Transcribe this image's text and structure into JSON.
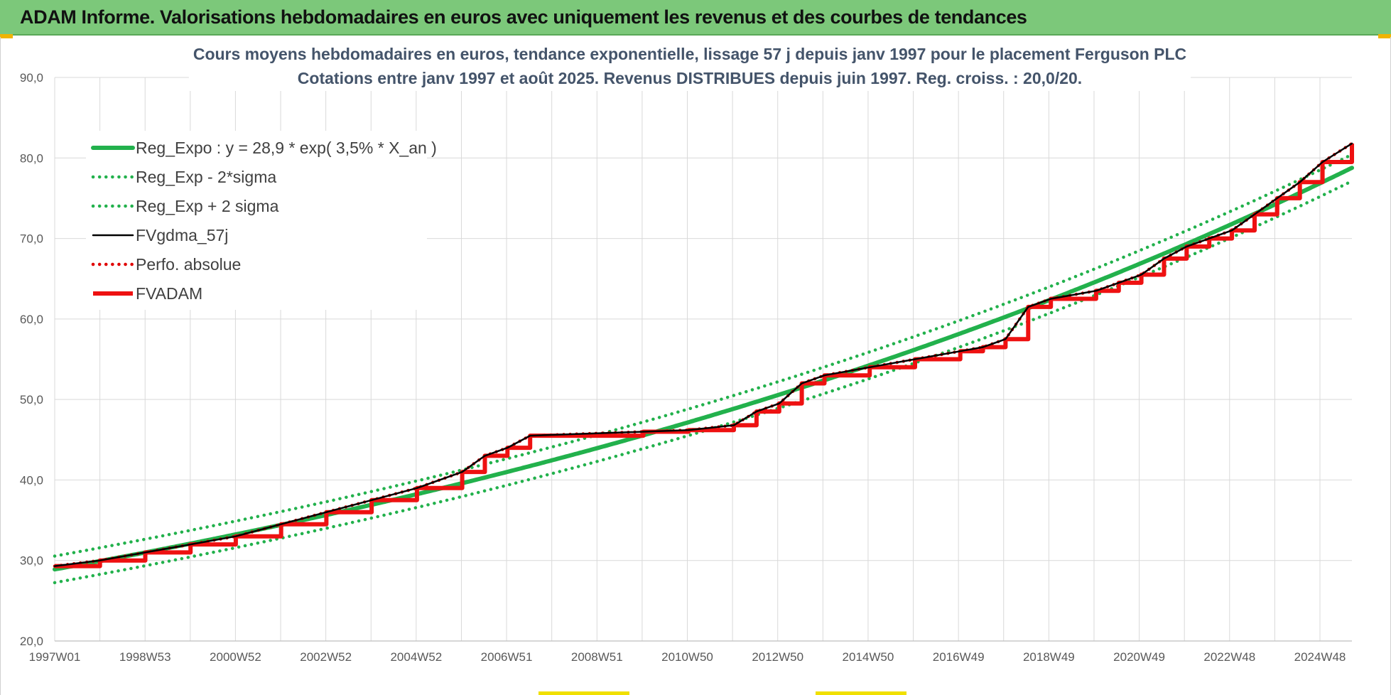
{
  "banner": {
    "title": "ADAM Informe. Valorisations hebdomadaires en euros avec uniquement les revenus et des courbes de tendances"
  },
  "colors": {
    "banner_bg": "#7cc87a",
    "reg_expo": "#22b14c",
    "perf_absolue": "#e00000",
    "fvadam": "#ee1111",
    "fvgdma": "#000000",
    "grid": "#d9d9d9"
  },
  "chart_data": {
    "type": "line",
    "title": [
      "Cours moyens hebdomadaires en euros, tendance exponentielle, lissage 57 j depuis janv 1997 pour le placement Ferguson PLC",
      "Cotations entre janv 1997 et août 2025.  Revenus DISTRIBUES depuis juin 1997.  Reg. croiss. : 20,0/20."
    ],
    "xlabel": "",
    "ylabel": "",
    "ylim": [
      20,
      90
    ],
    "grid": true,
    "legend_placement": "top-left",
    "x_tick_labels": [
      "1997W01",
      "1998W53",
      "2000W52",
      "2002W52",
      "2004W52",
      "2006W51",
      "2008W51",
      "2010W50",
      "2012W50",
      "2014W50",
      "2016W49",
      "2018W49",
      "2020W49",
      "2022W48",
      "2024W48"
    ],
    "y_tick_labels": [
      "20,0",
      "30,0",
      "40,0",
      "50,0",
      "60,0",
      "70,0",
      "80,0",
      "90,0"
    ],
    "x_range_years": [
      1997.0,
      2025.65
    ],
    "series": [
      {
        "name": "Reg_Expo : y = 28,9 * exp( 3,5% *  X_an )",
        "style": "solid-thick",
        "color": "#22b14c",
        "model": {
          "a": 28.9,
          "rate": 0.035,
          "offset": 0
        }
      },
      {
        "name": "Reg_Exp - 2*sigma",
        "style": "dotted",
        "color": "#22b14c",
        "model": {
          "a": 28.9,
          "rate": 0.035,
          "offset": -1.65
        }
      },
      {
        "name": "Reg_Exp + 2 sigma",
        "style": "dotted",
        "color": "#22b14c",
        "model": {
          "a": 28.9,
          "rate": 0.035,
          "offset": 1.65
        }
      },
      {
        "name": "FVgdma_57j",
        "style": "solid-thin",
        "color": "#000000",
        "x": [
          1997.0,
          1998.0,
          1999.0,
          2000.0,
          2001.0,
          2002.0,
          2003.0,
          2004.0,
          2005.0,
          2006.0,
          2006.5,
          2007.0,
          2007.5,
          2010.0,
          2011.0,
          2012.0,
          2012.5,
          2013.0,
          2013.5,
          2014.0,
          2015.0,
          2016.0,
          2017.0,
          2017.5,
          2018.0,
          2018.5,
          2019.0,
          2020.0,
          2020.5,
          2021.0,
          2021.5,
          2022.0,
          2022.5,
          2023.0,
          2023.5,
          2024.0,
          2024.5,
          2025.0,
          2025.65
        ],
        "y": [
          29.3,
          30.0,
          31.0,
          32.0,
          33.0,
          34.5,
          36.0,
          37.5,
          39.0,
          41.0,
          43.0,
          44.0,
          45.5,
          46.0,
          46.2,
          46.8,
          48.5,
          49.5,
          52.0,
          53.0,
          54.0,
          55.0,
          56.0,
          56.5,
          57.5,
          61.5,
          62.5,
          63.5,
          64.5,
          65.5,
          67.5,
          69.0,
          70.0,
          71.0,
          73.0,
          75.0,
          77.0,
          79.5,
          81.8
        ]
      },
      {
        "name": "Perfo. absolue",
        "style": "dotted",
        "color": "#e00000",
        "x": [
          1997.0,
          1998.0,
          1999.0,
          2000.0,
          2001.0,
          2002.0,
          2003.0,
          2004.0,
          2005.0,
          2006.0,
          2006.5,
          2007.0,
          2007.5,
          2010.0,
          2011.0,
          2012.0,
          2012.5,
          2013.0,
          2013.5,
          2014.0,
          2015.0,
          2016.0,
          2017.0,
          2017.5,
          2018.0,
          2018.5,
          2019.0,
          2020.0,
          2020.5,
          2021.0,
          2021.5,
          2022.0,
          2022.5,
          2023.0,
          2023.5,
          2024.0,
          2024.5,
          2025.0,
          2025.65
        ],
        "y": [
          29.3,
          30.0,
          31.0,
          32.0,
          33.0,
          34.5,
          36.0,
          37.5,
          39.0,
          41.0,
          43.0,
          44.0,
          45.5,
          46.0,
          46.2,
          46.8,
          48.5,
          49.5,
          52.0,
          53.0,
          54.0,
          55.0,
          56.0,
          56.5,
          57.5,
          61.5,
          62.5,
          63.5,
          64.5,
          65.5,
          67.5,
          69.0,
          70.0,
          71.0,
          73.0,
          75.0,
          77.0,
          79.5,
          81.8
        ]
      },
      {
        "name": "FVADAM",
        "style": "step-thick",
        "color": "#ee1111",
        "x": [
          1997.0,
          1998.0,
          1999.0,
          2000.0,
          2001.0,
          2002.0,
          2003.0,
          2004.0,
          2005.0,
          2006.0,
          2006.5,
          2007.0,
          2007.5,
          2010.0,
          2011.0,
          2012.0,
          2012.5,
          2013.0,
          2013.5,
          2014.0,
          2015.0,
          2016.0,
          2017.0,
          2017.5,
          2018.0,
          2018.5,
          2019.0,
          2020.0,
          2020.5,
          2021.0,
          2021.5,
          2022.0,
          2022.5,
          2023.0,
          2023.5,
          2024.0,
          2024.5,
          2025.0,
          2025.65
        ],
        "y": [
          29.3,
          30.0,
          31.0,
          32.0,
          33.0,
          34.5,
          36.0,
          37.5,
          39.0,
          41.0,
          43.0,
          44.0,
          45.5,
          46.0,
          46.2,
          46.8,
          48.5,
          49.5,
          52.0,
          53.0,
          54.0,
          55.0,
          56.0,
          56.5,
          57.5,
          61.5,
          62.5,
          63.5,
          64.5,
          65.5,
          67.5,
          69.0,
          70.0,
          71.0,
          73.0,
          75.0,
          77.0,
          79.5,
          81.8
        ]
      }
    ]
  }
}
